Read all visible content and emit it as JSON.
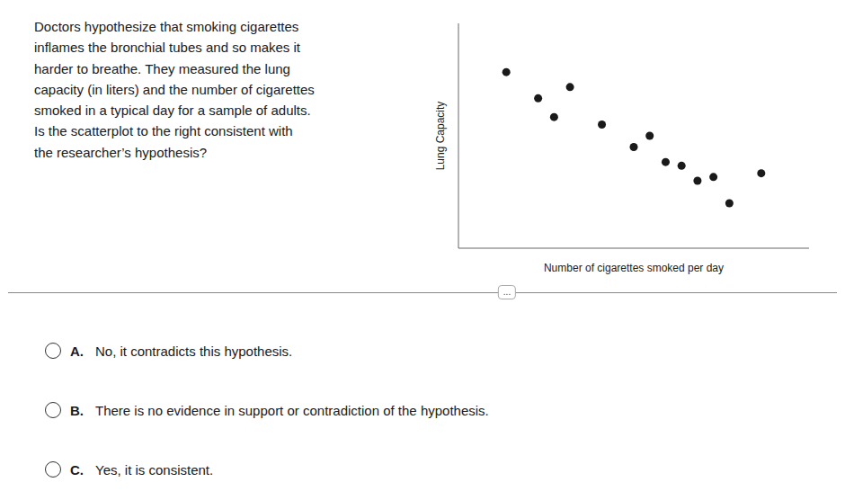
{
  "chart_data": {
    "type": "scatter",
    "x": [
      2,
      3,
      3.5,
      4,
      5,
      6,
      6.5,
      7,
      7.5,
      8,
      8.5,
      9,
      10
    ],
    "values": [
      8.2,
      7.5,
      7.0,
      7.8,
      6.8,
      6.2,
      6.5,
      5.8,
      5.7,
      5.3,
      5.4,
      4.7,
      5.5
    ],
    "color": "#1a1a1a",
    "xlabel": "Number of cigarettes smoked per day",
    "ylabel": "Lung Capacity",
    "xlim": [
      0.5,
      11.5
    ],
    "ylim": [
      3.5,
      9.5
    ],
    "xticks": [],
    "yticks": [],
    "tick_labels": false,
    "grid": false,
    "annotations": {
      "question": "Doctors hypothesize that smoking cigarettes\ninflames the bronchial tubes and so makes it\nharder to breathe. They measured the lung\ncapacity (in liters) and the number of cigarettes\nsmoked in a typical day for a sample of adults.\nIs the scatterplot to the right consistent with\nthe researcher’s hypothesis?",
      "divider": "...",
      "options": [
        {
          "label": "A.",
          "text": "No, it contradicts this hypothesis."
        },
        {
          "label": "B.",
          "text": "There is no evidence in support or contradiction of the hypothesis."
        },
        {
          "label": "C.",
          "text": "Yes, it is consistent."
        }
      ]
    }
  }
}
